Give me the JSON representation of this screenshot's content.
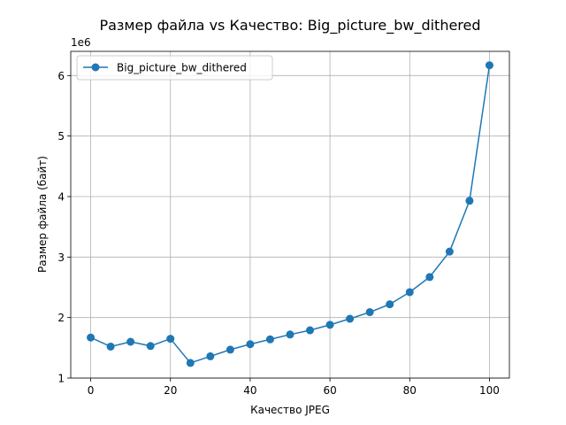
{
  "chart_data": {
    "type": "line",
    "title": "Размер файла vs Качество: Big_picture_bw_dithered",
    "xlabel": "Качество JPEG",
    "ylabel": "Размер файла (байт)",
    "y_offset_label": "1e6",
    "xlim": [
      -5,
      105
    ],
    "ylim": [
      1.0,
      6.4
    ],
    "xticks": [
      0,
      20,
      40,
      60,
      80,
      100
    ],
    "yticks": [
      1,
      2,
      3,
      4,
      5,
      6
    ],
    "grid": true,
    "legend_position": "top-left",
    "series": [
      {
        "name": "Big_picture_bw_dithered",
        "color": "#1f77b4",
        "marker": "circle",
        "x": [
          0,
          5,
          10,
          15,
          20,
          25,
          30,
          35,
          40,
          45,
          50,
          55,
          60,
          65,
          70,
          75,
          80,
          85,
          90,
          95,
          100
        ],
        "y": [
          1.67,
          1.52,
          1.6,
          1.53,
          1.65,
          1.25,
          1.36,
          1.47,
          1.56,
          1.64,
          1.72,
          1.79,
          1.88,
          1.98,
          2.09,
          2.22,
          2.42,
          2.67,
          3.09,
          3.93,
          6.17
        ]
      }
    ]
  }
}
